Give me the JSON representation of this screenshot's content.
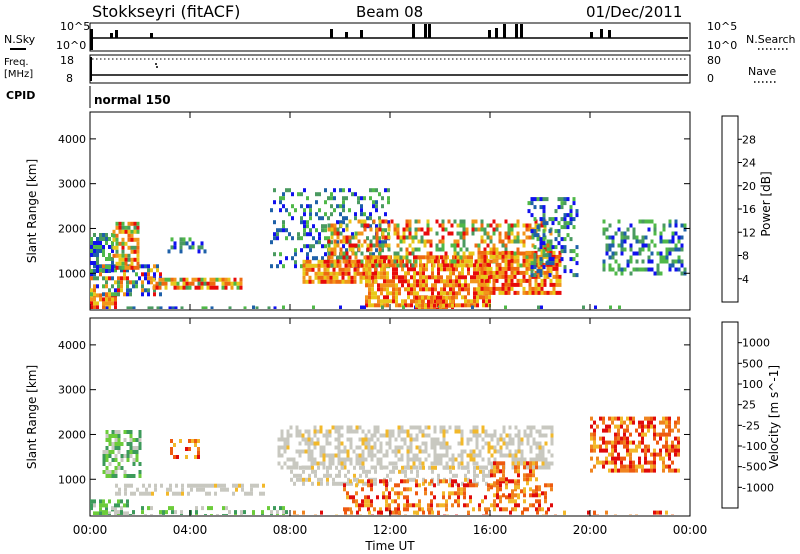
{
  "header": {
    "station": "Stokkseyri (fitACF)",
    "beam": "Beam 08",
    "date": "01/Dec/2011"
  },
  "left_labels": {
    "nsky": "N.Sky",
    "freq_line1": "Freq.",
    "freq_line2": "[MHz]",
    "cpid": "CPID"
  },
  "right_labels": {
    "nsearch": "N.Search",
    "nave": "Nave"
  },
  "nsky_scale": {
    "top": "10^5",
    "bottom": "10^0"
  },
  "freq_scale": {
    "top": "18",
    "bottom": "8"
  },
  "nave_scale": {
    "top": "80",
    "bottom": "0"
  },
  "cpid_text": "normal 150",
  "chart_data": [
    {
      "type": "heatmap",
      "name": "power",
      "ylabel": "Slant Range [km]",
      "xlabel": "Time UT",
      "x_ticks": [
        "00:00",
        "04:00",
        "08:00",
        "12:00",
        "16:00",
        "20:00",
        "00:00"
      ],
      "x_range_hours": [
        0,
        24
      ],
      "y_ticks": [
        1000,
        2000,
        3000,
        4000
      ],
      "ylim": [
        180,
        4600
      ],
      "colorbar": {
        "label": "Power [dB]",
        "ticks": [
          "4",
          "8",
          "12",
          "16",
          "20",
          "24",
          "28"
        ],
        "colors": [
          "#1010ee",
          "#1e60a8",
          "#4a9a60",
          "#4fb848",
          "#e8c81a",
          "#f2961a",
          "#ee6a10",
          "#e80a0a"
        ]
      }
    },
    {
      "type": "heatmap",
      "name": "velocity",
      "ylabel": "Slant Range [km]",
      "xlabel": "Time UT",
      "x_ticks": [
        "00:00",
        "04:00",
        "08:00",
        "12:00",
        "16:00",
        "20:00",
        "00:00"
      ],
      "x_range_hours": [
        0,
        24
      ],
      "y_ticks": [
        1000,
        2000,
        3000,
        4000
      ],
      "ylim": [
        180,
        4600
      ],
      "colorbar": {
        "label": "Velocity [m s^-1]",
        "ticks": [
          "1000",
          "500",
          "100",
          "25",
          "-25",
          "-100",
          "-500",
          "-1000"
        ],
        "colors": [
          "#2030c8",
          "#1e6ea0",
          "#3c9a5a",
          "#6ccc3a",
          "#c8c8c0",
          "#f2b82a",
          "#f08420",
          "#ee5a10",
          "#e00a0a"
        ]
      }
    }
  ],
  "colors": {
    "axis": "#000000",
    "ground_scatter": "#c8c8c0"
  }
}
